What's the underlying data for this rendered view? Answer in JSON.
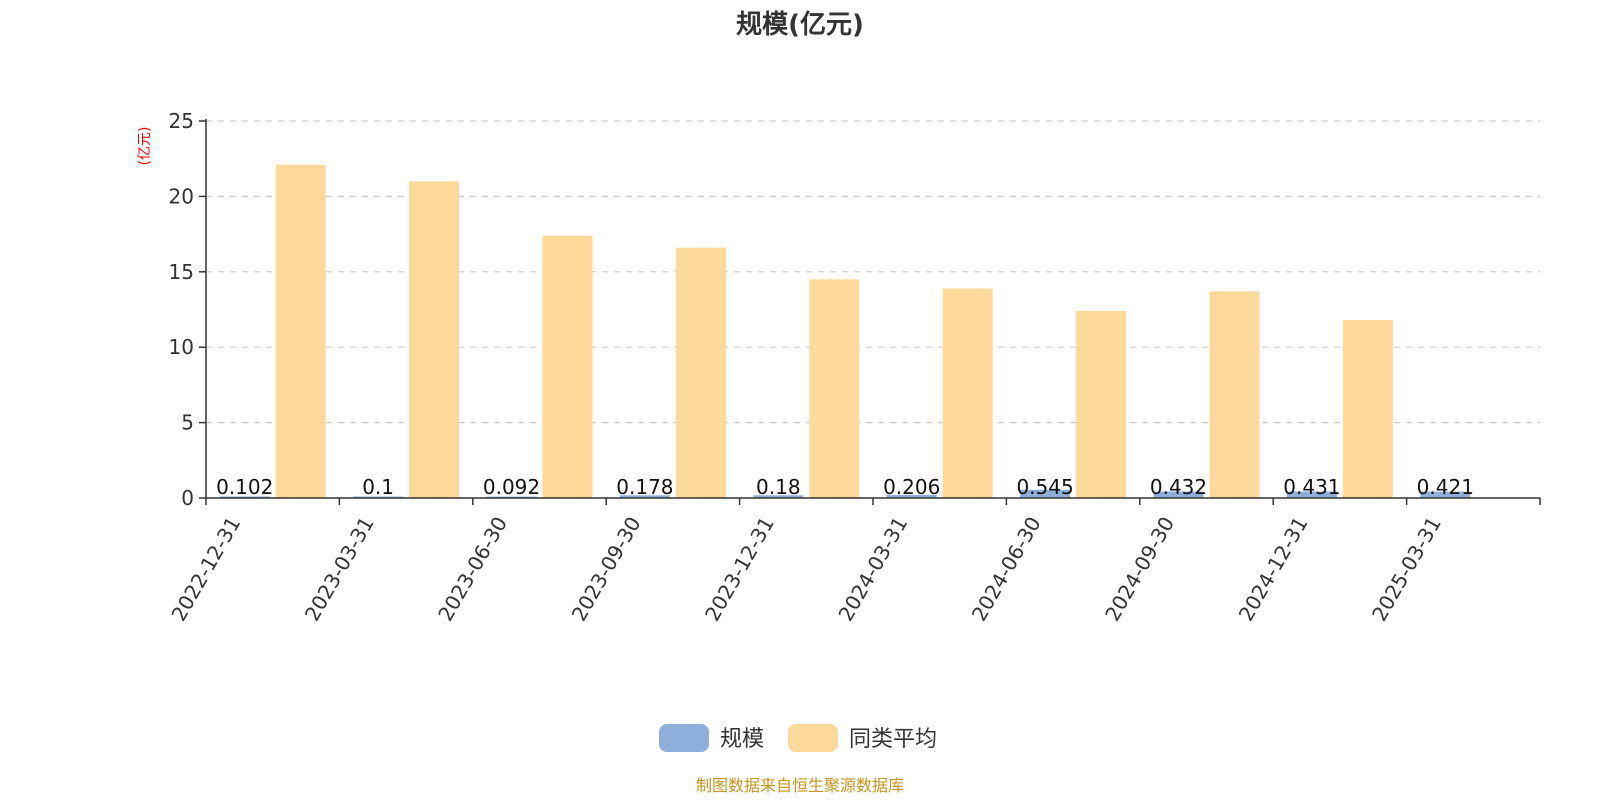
{
  "chart_data": {
    "type": "bar",
    "title": "规模(亿元)",
    "ylabel": "(亿元)",
    "ylim": [
      0,
      25
    ],
    "yticks": [
      0,
      5,
      10,
      15,
      20,
      25
    ],
    "grid": true,
    "categories": [
      "2022-12-31",
      "2023-03-31",
      "2023-06-30",
      "2023-09-30",
      "2023-12-31",
      "2024-03-31",
      "2024-06-30",
      "2024-09-30",
      "2024-12-31",
      "2025-03-31"
    ],
    "series": [
      {
        "name": "规模",
        "color": "#8eaedb",
        "values": [
          0.102,
          0.1,
          0.092,
          0.178,
          0.18,
          0.206,
          0.545,
          0.432,
          0.431,
          0.421
        ],
        "labels": [
          "0.102",
          "0.1",
          "0.092",
          "0.178",
          "0.18",
          "0.206",
          "0.545",
          "0.432",
          "0.431",
          "0.421"
        ]
      },
      {
        "name": "同类平均",
        "color": "#fdd99b",
        "values": [
          22.1,
          21.0,
          17.4,
          16.6,
          14.5,
          13.9,
          12.4,
          13.7,
          11.8,
          null
        ]
      }
    ],
    "legend_position": "bottom-center",
    "source": "制图数据来自恒生聚源数据库"
  },
  "colors": {
    "ylabel": "#ff0000",
    "source": "#c8961e",
    "axis": "#333333",
    "grid": "#cccccc"
  }
}
